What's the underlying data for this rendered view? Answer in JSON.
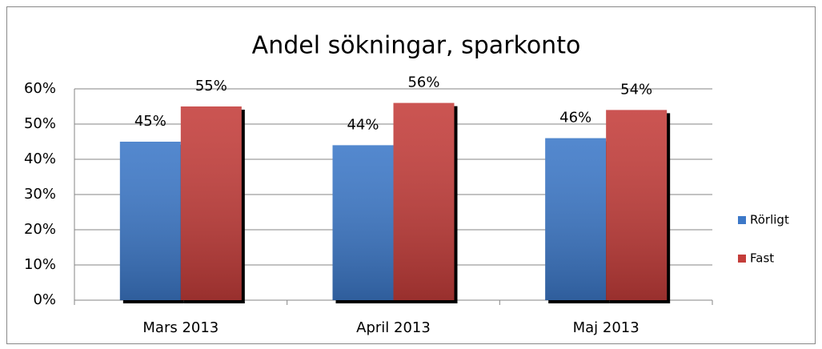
{
  "chart_data": {
    "type": "bar",
    "title": "Andel sökningar, sparkonto",
    "categories": [
      "Mars 2013",
      "April 2013",
      "Maj 2013"
    ],
    "series": [
      {
        "name": "Rörligt",
        "color": "#3c78c8",
        "values": [
          45,
          44,
          46
        ],
        "value_labels": [
          "45%",
          "44%",
          "46%"
        ]
      },
      {
        "name": "Fast",
        "color": "#c43d3a",
        "values": [
          55,
          56,
          54
        ],
        "value_labels": [
          "55%",
          "56%",
          "54%"
        ]
      }
    ],
    "ylim": [
      0,
      60
    ],
    "yticks": [
      {
        "value": 0,
        "label": "0%"
      },
      {
        "value": 10,
        "label": "10%"
      },
      {
        "value": 20,
        "label": "20%"
      },
      {
        "value": 30,
        "label": "30%"
      },
      {
        "value": 40,
        "label": "40%"
      },
      {
        "value": 50,
        "label": "50%"
      },
      {
        "value": 60,
        "label": "60%"
      }
    ],
    "grid": true,
    "legend": "right"
  }
}
